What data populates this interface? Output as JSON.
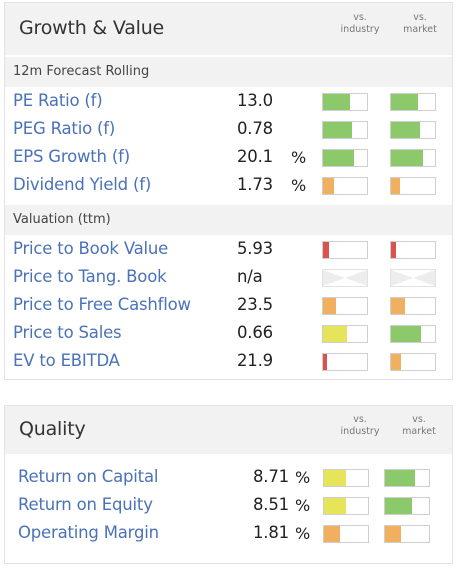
{
  "growth": {
    "title": "Growth & Value",
    "vs_industry": [
      "vs.",
      "industry"
    ],
    "vs_market": [
      "vs.",
      "market"
    ],
    "forecast_header": "12m Forecast Rolling",
    "forecast_rows": [
      {
        "label": "PE Ratio (f)",
        "value": "13.0",
        "unit": "",
        "industry": {
          "level": 0.62,
          "color": "#8cc96b"
        },
        "market": {
          "level": 0.62,
          "color": "#8cc96b"
        }
      },
      {
        "label": "PEG Ratio (f)",
        "value": "0.78",
        "unit": "",
        "industry": {
          "level": 0.66,
          "color": "#8cc96b"
        },
        "market": {
          "level": 0.66,
          "color": "#8cc96b"
        }
      },
      {
        "label": "EPS Growth (f)",
        "value": "20.1",
        "unit": "%",
        "industry": {
          "level": 0.7,
          "color": "#8cc96b"
        },
        "market": {
          "level": 0.72,
          "color": "#8cc96b"
        }
      },
      {
        "label": "Dividend Yield (f)",
        "value": "1.73",
        "unit": "%",
        "industry": {
          "level": 0.24,
          "color": "#f0b060"
        },
        "market": {
          "level": 0.2,
          "color": "#f0b060"
        }
      }
    ],
    "valuation_header": "Valuation (ttm)",
    "valuation_rows": [
      {
        "label": "Price to Book Value",
        "value": "5.93",
        "unit": "",
        "industry": {
          "level": 0.14,
          "color": "#d9534f"
        },
        "market": {
          "level": 0.12,
          "color": "#d9534f"
        }
      },
      {
        "label": "Price to Tang. Book",
        "value": "n/a",
        "unit": "",
        "industry": {
          "level": 0,
          "color": "na"
        },
        "market": {
          "level": 0,
          "color": "na"
        }
      },
      {
        "label": "Price to Free Cashflow",
        "value": "23.5",
        "unit": "",
        "industry": {
          "level": 0.3,
          "color": "#f0b060"
        },
        "market": {
          "level": 0.32,
          "color": "#f0b060"
        }
      },
      {
        "label": "Price to Sales",
        "value": "0.66",
        "unit": "",
        "industry": {
          "level": 0.55,
          "color": "#e6e45a"
        },
        "market": {
          "level": 0.68,
          "color": "#8cc96b"
        }
      },
      {
        "label": "EV to EBITDA",
        "value": "21.9",
        "unit": "",
        "industry": {
          "level": 0.1,
          "color": "#d9534f"
        },
        "market": {
          "level": 0.22,
          "color": "#f0b060"
        }
      }
    ]
  },
  "quality": {
    "title": "Quality",
    "vs_industry": [
      "vs.",
      "industry"
    ],
    "vs_market": [
      "vs.",
      "market"
    ],
    "rows": [
      {
        "label": "Return on Capital",
        "value": "8.71",
        "unit": "%",
        "industry": {
          "level": 0.5,
          "color": "#e6e45a"
        },
        "market": {
          "level": 0.68,
          "color": "#8cc96b"
        }
      },
      {
        "label": "Return on Equity",
        "value": "8.51",
        "unit": "%",
        "industry": {
          "level": 0.5,
          "color": "#e6e45a"
        },
        "market": {
          "level": 0.62,
          "color": "#8cc96b"
        }
      },
      {
        "label": "Operating Margin",
        "value": "1.81",
        "unit": "%",
        "industry": {
          "level": 0.36,
          "color": "#f0b060"
        },
        "market": {
          "level": 0.36,
          "color": "#f0b060"
        }
      }
    ]
  }
}
